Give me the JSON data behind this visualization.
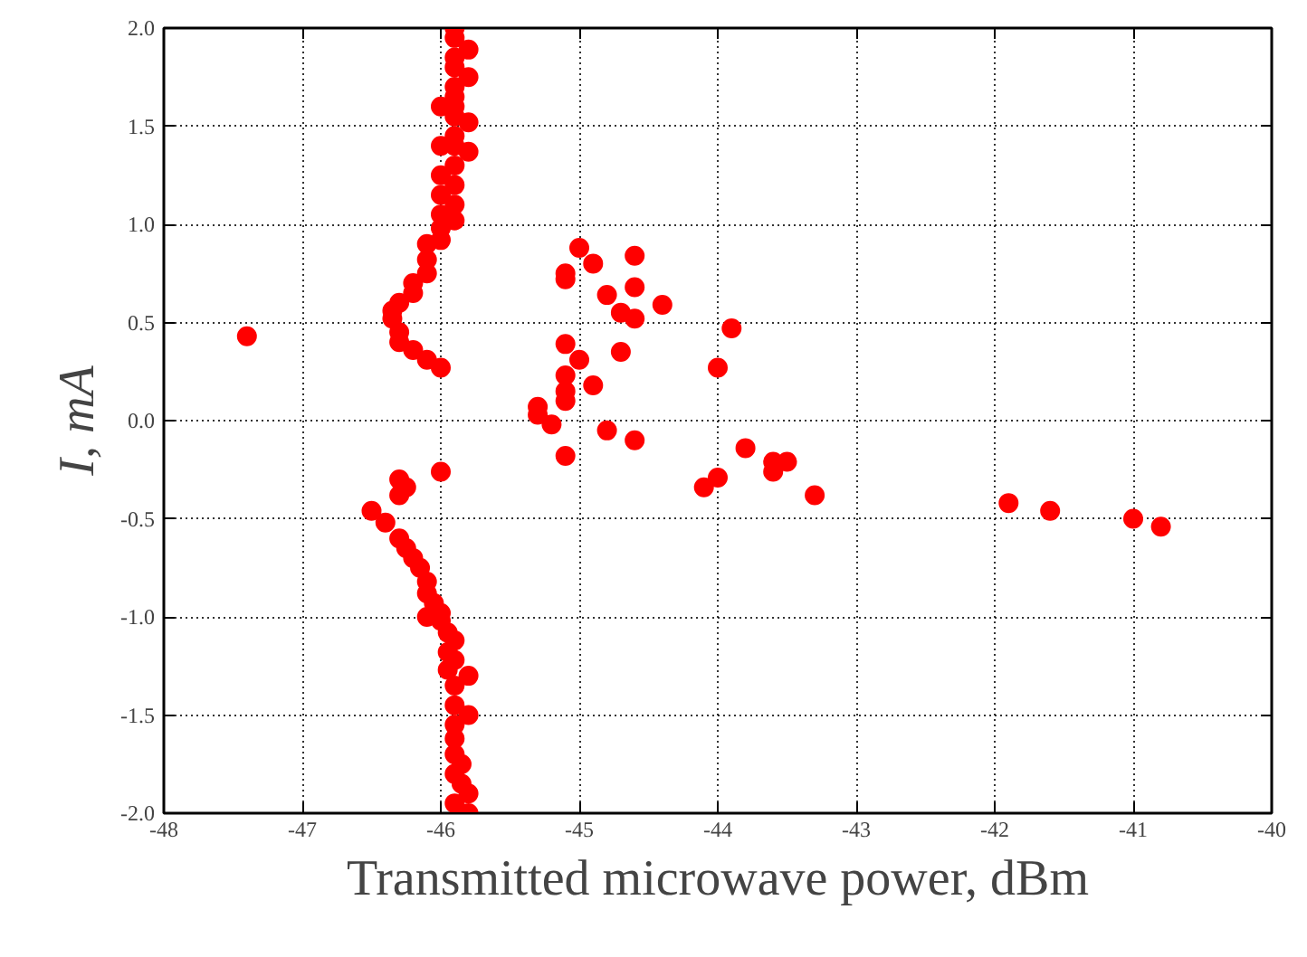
{
  "chart_data": {
    "type": "scatter",
    "xlabel": "Transmitted microwave power, dBm",
    "ylabel": "I, mA",
    "xlim": [
      -48,
      -40
    ],
    "xticks": [
      -48,
      -47,
      -46,
      -45,
      -44,
      -43,
      -42,
      -41,
      -40
    ],
    "ylim": [
      -2.0,
      2.0
    ],
    "yticks": [
      {
        "value": -2,
        "label": "-2.0"
      },
      {
        "value": -1.5,
        "label": "-1.5"
      },
      {
        "value": -1,
        "label": "-1.0"
      },
      {
        "value": -0.5,
        "label": "-0.5"
      },
      {
        "value": 0,
        "label": "0.0"
      },
      {
        "value": 0.5,
        "label": "0.5"
      },
      {
        "value": 1,
        "label": "1.0"
      },
      {
        "value": 1.5,
        "label": "1.5"
      },
      {
        "value": 2,
        "label": "2.0"
      }
    ],
    "grid": true,
    "marker": "circle",
    "series": [
      {
        "color": "#ff0000",
        "x": [
          -45.9,
          -45.9,
          -45.8,
          -45.9,
          -45.9,
          -45.8,
          -45.9,
          -45.9,
          -46.0,
          -45.9,
          -45.9,
          -45.8,
          -45.9,
          -46.0,
          -45.9,
          -45.8,
          -45.9,
          -46.0,
          -45.9,
          -46.0,
          -45.9,
          -46.0,
          -45.9,
          -46.0,
          -46.0,
          -46.1,
          -46.1,
          -46.1,
          -46.2,
          -46.2,
          -46.3,
          -46.35,
          -46.35,
          -46.3,
          -46.3,
          -46.2,
          -46.1,
          -46.0,
          -46.0,
          -46.3,
          -46.25,
          -46.3,
          -46.5,
          -46.4,
          -46.3,
          -46.25,
          -46.2,
          -46.15,
          -46.1,
          -46.1,
          -46.05,
          -46.0,
          -46.1,
          -46.0,
          -45.95,
          -45.9,
          -45.95,
          -45.9,
          -45.95,
          -45.8,
          -45.9,
          -45.9,
          -45.8,
          -45.9,
          -45.9,
          -45.9,
          -45.85,
          -45.9,
          -45.85,
          -45.8,
          -45.9,
          -45.8,
          -47.4,
          -45.0,
          -44.9,
          -44.6,
          -45.1,
          -45.1,
          -44.8,
          -44.6,
          -44.7,
          -44.6,
          -44.4,
          -43.9,
          -45.1,
          -45.0,
          -44.7,
          -44.0,
          -45.1,
          -44.9,
          -45.1,
          -45.1,
          -45.3,
          -45.3,
          -45.2,
          -44.8,
          -44.6,
          -45.1,
          -43.8,
          -43.6,
          -43.6,
          -43.5,
          -44.0,
          -44.1,
          -43.3,
          -41.9,
          -41.6,
          -41.0,
          -40.8
        ],
        "values": [
          2.0,
          1.95,
          1.89,
          1.85,
          1.8,
          1.75,
          1.7,
          1.65,
          1.6,
          1.6,
          1.55,
          1.52,
          1.45,
          1.4,
          1.4,
          1.37,
          1.3,
          1.25,
          1.2,
          1.15,
          1.1,
          1.05,
          1.02,
          0.98,
          0.92,
          0.9,
          0.82,
          0.75,
          0.7,
          0.65,
          0.6,
          0.56,
          0.52,
          0.45,
          0.4,
          0.36,
          0.31,
          0.27,
          -0.26,
          -0.3,
          -0.34,
          -0.38,
          -0.46,
          -0.52,
          -0.6,
          -0.65,
          -0.7,
          -0.75,
          -0.82,
          -0.88,
          -0.93,
          -0.98,
          -1.0,
          -1.02,
          -1.08,
          -1.12,
          -1.18,
          -1.22,
          -1.27,
          -1.3,
          -1.35,
          -1.45,
          -1.5,
          -1.55,
          -1.62,
          -1.7,
          -1.75,
          -1.8,
          -1.85,
          -1.9,
          -1.95,
          -2.0,
          0.43,
          0.88,
          0.8,
          0.84,
          0.75,
          0.72,
          0.64,
          0.68,
          0.55,
          0.52,
          0.59,
          0.47,
          0.39,
          0.31,
          0.35,
          0.27,
          0.23,
          0.18,
          0.15,
          0.1,
          0.07,
          0.03,
          -0.02,
          -0.05,
          -0.1,
          -0.18,
          -0.14,
          -0.21,
          -0.26,
          -0.21,
          -0.29,
          -0.34,
          -0.38,
          -0.42,
          -0.46,
          -0.5,
          -0.54
        ]
      }
    ]
  }
}
